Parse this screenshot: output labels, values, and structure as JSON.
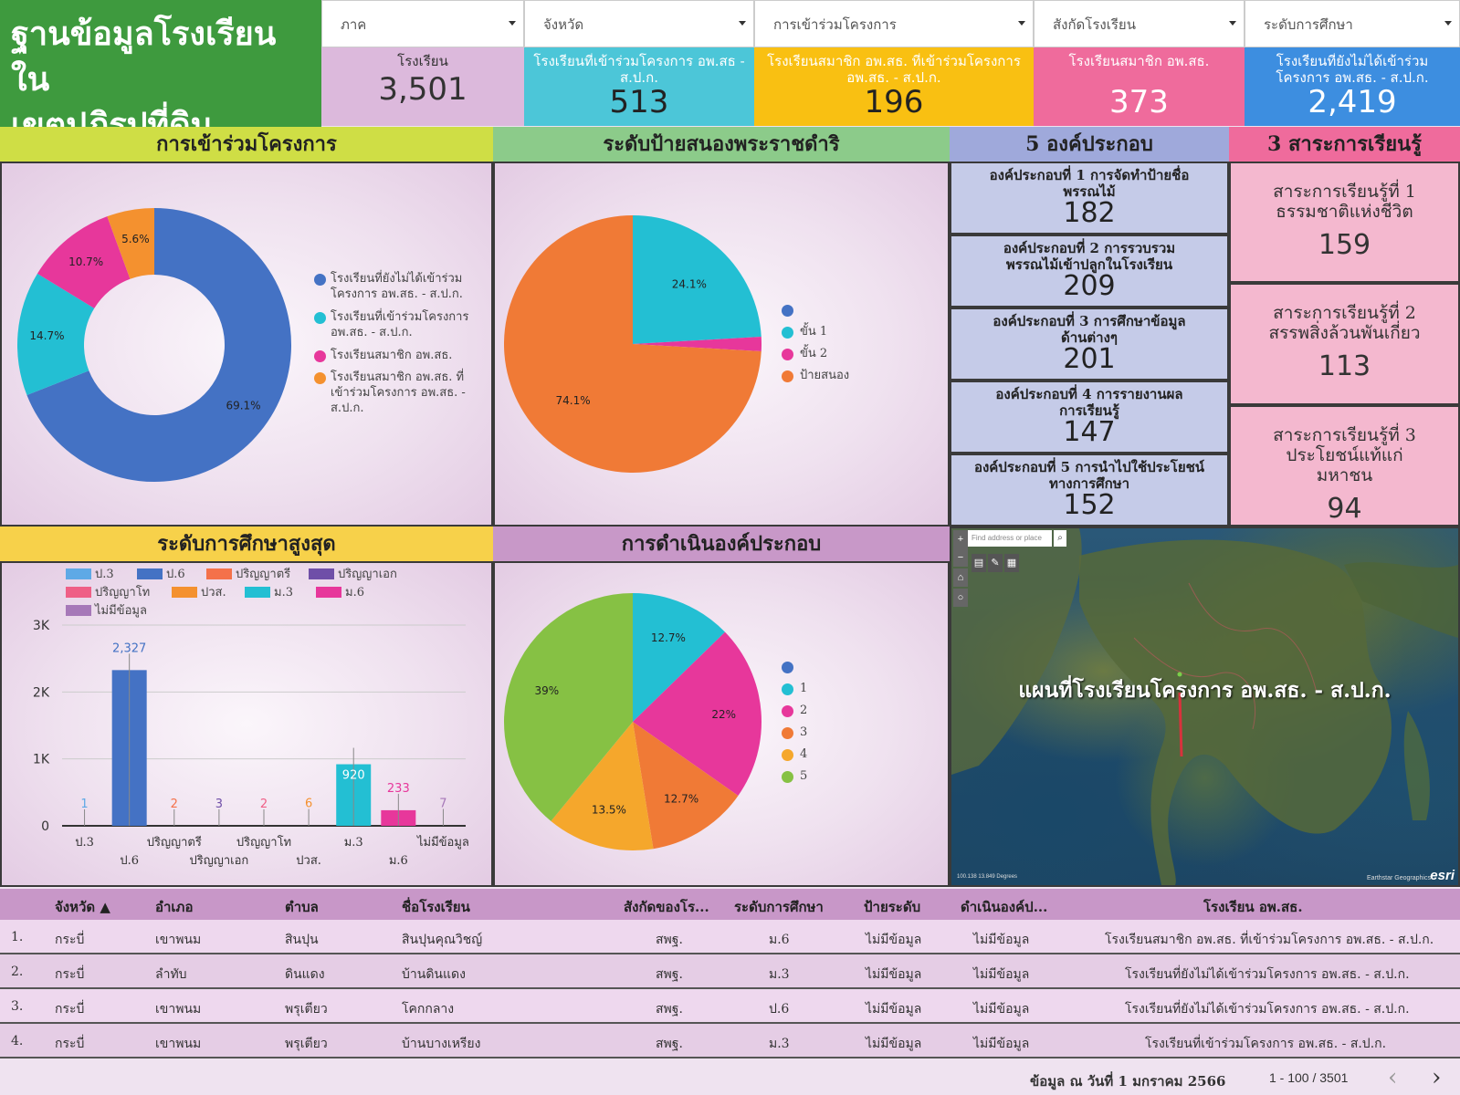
{
  "header": {
    "title_line1": "ฐานข้อมูลโรงเรียนใน",
    "title_line2": "เขตปฏิรูปที่ดิน"
  },
  "filters": [
    {
      "label": "ภาค"
    },
    {
      "label": "จังหวัด"
    },
    {
      "label": "การเข้าร่วมโครงการ"
    },
    {
      "label": "สังกัดโรงเรียน"
    },
    {
      "label": "ระดับการศึกษา"
    }
  ],
  "kpis": [
    {
      "label": "โรงเรียน",
      "value": "3,501",
      "color": "#dcb9dc"
    },
    {
      "label": "โรงเรียนที่เข้าร่วมโครงการ อพ.สธ - ส.ป.ก.",
      "value": "513",
      "color": "#4cc6d8"
    },
    {
      "label": "โรงเรียนสมาชิก อพ.สธ. ที่เข้าร่วมโครงการ อพ.สธ. - ส.ป.ก.",
      "value": "196",
      "color": "#f9c012"
    },
    {
      "label": "โรงเรียนสมาชิก อพ.สธ.",
      "value": "373",
      "color": "#ef6b9c"
    },
    {
      "label": "โรงเรียนที่ยังไม่ได้เข้าร่วมโครงการ อพ.สธ. - ส.ป.ก.",
      "value": "2,419",
      "color": "#3d8ee0"
    }
  ],
  "sections": {
    "participation": {
      "title": "การเข้าร่วมโครงการ",
      "color": "#cfde45"
    },
    "sign_level": {
      "title": "ระดับป้ายสนองพระราชดำริ",
      "color": "#8ccb8a"
    },
    "components": {
      "title": "5 องค์ประกอบ",
      "color": "#9fa9db"
    },
    "strands": {
      "title": "3 สาระการเรียนรู้",
      "color": "#ef6b9c"
    },
    "education": {
      "title": "ระดับการศึกษาสูงสุด",
      "color": "#f7d14a"
    },
    "operation": {
      "title": "การดำเนินองค์ประกอบ",
      "color": "#c898c8"
    }
  },
  "participation_chart": {
    "type": "donut",
    "slices": [
      {
        "label": "โรงเรียนที่ยังไม่ได้เข้าร่วม โครงการ อพ.สธ. - ส.ป.ก.",
        "percent": 69.1,
        "pct_label": "69.1%",
        "color": "#4472c4"
      },
      {
        "label": "โรงเรียนที่เข้าร่วมโครงการ อพ.สธ. - ส.ป.ก.",
        "percent": 14.7,
        "pct_label": "14.7%",
        "color": "#23bfd3"
      },
      {
        "label": "โรงเรียนสมาชิก อพ.สธ.",
        "percent": 10.7,
        "pct_label": "10.7%",
        "color": "#e7379b"
      },
      {
        "label": "โรงเรียนสมาชิก อพ.สธ. ที่ เข้าร่วมโครงการ อพ.สธ. - ส.ป.ก.",
        "percent": 5.6,
        "pct_label": "5.6%",
        "color": "#f4912f"
      }
    ]
  },
  "sign_chart": {
    "type": "pie",
    "slices": [
      {
        "label": "",
        "percent": 0.0,
        "pct_label": "",
        "color": "#4472c4"
      },
      {
        "label": "ขั้น 1",
        "percent": 24.1,
        "pct_label": "24.1%",
        "color": "#23bfd3"
      },
      {
        "label": "ขั้น 2",
        "percent": 1.8,
        "pct_label": "",
        "color": "#e7379b"
      },
      {
        "label": "ป้ายสนอง",
        "percent": 74.1,
        "pct_label": "74.1%",
        "color": "#f07a36"
      }
    ]
  },
  "components": [
    {
      "title": "องค์ประกอบที่ 1 การจัดทำป้ายชื่อพรรณไม้",
      "value": "182"
    },
    {
      "title": "องค์ประกอบที่ 2 การรวบรวม พรรณไม้เข้าปลูกในโรงเรียน",
      "value": "209"
    },
    {
      "title": "องค์ประกอบที่ 3 การศึกษาข้อมูลด้านต่างๆ",
      "value": "201"
    },
    {
      "title": "องค์ประกอบที่ 4 การรายงานผลการเรียนรู้",
      "value": "147"
    },
    {
      "title": "องค์ประกอบที่ 5 การนำไปใช้ประโยชน์ ทางการศึกษา",
      "value": "152"
    }
  ],
  "strands": [
    {
      "title": "สาระการเรียนรู้ที่ 1 ธรรมชาติแห่งชีวิต",
      "value": "159"
    },
    {
      "title": "สาระการเรียนรู้ที่ 2 สรรพสิ่งล้วนพันเกี่ยว",
      "value": "113"
    },
    {
      "title": "สาระการเรียนรู้ที่ 3 ประโยชน์แท้แก่มหาชน",
      "value": "94"
    }
  ],
  "chart_data": [
    {
      "type": "bar",
      "categories": [
        "ป.3",
        "ป.6",
        "ปริญญาตรี",
        "ปริญญาเอก",
        "ปริญญาโท",
        "ปวส.",
        "ม.3",
        "ม.6",
        "ไม่มีข้อมูล"
      ],
      "values": [
        1,
        2327,
        2,
        3,
        2,
        6,
        920,
        233,
        7
      ],
      "value_labels": [
        "1",
        "2,327",
        "2",
        "3",
        "2",
        "6",
        "920",
        "233",
        "7"
      ],
      "colors": [
        "#5ea9e6",
        "#4472c4",
        "#f4714a",
        "#6f4fa8",
        "#ef5f86",
        "#f4912f",
        "#23bfd3",
        "#e7379b",
        "#a678b8"
      ],
      "yticks": [
        "0",
        "1K",
        "2K",
        "3K"
      ],
      "ylim": [
        0,
        3000
      ]
    },
    {
      "type": "pie",
      "categories": [
        "",
        "1",
        "2",
        "3",
        "4",
        "5"
      ],
      "values": [
        0,
        12.7,
        22,
        12.7,
        13.5,
        39
      ],
      "value_labels": [
        "",
        "12.7%",
        "22%",
        "12.7%",
        "13.5%",
        "39%"
      ],
      "colors": [
        "#4472c4",
        "#23bfd3",
        "#e7379b",
        "#f07a36",
        "#f5a72c",
        "#86c144"
      ]
    }
  ],
  "map": {
    "title": "แผนที่โรงเรียนโครงการ อพ.สธ. - ส.ป.ก.",
    "search_placeholder": "Find address or place",
    "scale_text": "100.138 13.849 Degrees",
    "credit": "Earthstar Geographics",
    "logo": "esri"
  },
  "table": {
    "headers": [
      "จังหวัด ▲",
      "อำเภอ",
      "ตำบล",
      "ชื่อโรงเรียน",
      "สังกัดของโร...",
      "ระดับการศึกษา",
      "ป้ายระดับ",
      "ดำเนินองค์ป...",
      "โรงเรียน อพ.สธ."
    ],
    "rows": [
      {
        "n": "1.",
        "province": "กระบี่",
        "district": "เขาพนม",
        "subdistrict": "สินปุน",
        "school": "สินปุนคุณวิชญ์",
        "affiliation": "สพฐ.",
        "level": "ม.6",
        "sign": "ไม่มีข้อมูล",
        "component": "ไม่มีข้อมูล",
        "status": "โรงเรียนสมาชิก อพ.สธ. ที่เข้าร่วมโครงการ อพ.สธ. - ส.ป.ก."
      },
      {
        "n": "2.",
        "province": "กระบี่",
        "district": "ลำทับ",
        "subdistrict": "ดินแดง",
        "school": "บ้านดินแดง",
        "affiliation": "สพฐ.",
        "level": "ม.3",
        "sign": "ไม่มีข้อมูล",
        "component": "ไม่มีข้อมูล",
        "status": "โรงเรียนที่ยังไม่ได้เข้าร่วมโครงการ อพ.สธ. - ส.ป.ก."
      },
      {
        "n": "3.",
        "province": "กระบี่",
        "district": "เขาพนม",
        "subdistrict": "พรุเตียว",
        "school": "โคกกลาง",
        "affiliation": "สพฐ.",
        "level": "ป.6",
        "sign": "ไม่มีข้อมูล",
        "component": "ไม่มีข้อมูล",
        "status": "โรงเรียนที่ยังไม่ได้เข้าร่วมโครงการ อพ.สธ. - ส.ป.ก."
      },
      {
        "n": "4.",
        "province": "กระบี่",
        "district": "เขาพนม",
        "subdistrict": "พรุเตียว",
        "school": "บ้านบางเหรียง",
        "affiliation": "สพฐ.",
        "level": "ม.3",
        "sign": "ไม่มีข้อมูล",
        "component": "ไม่มีข้อมูล",
        "status": "โรงเรียนที่เข้าร่วมโครงการ อพ.สธ. - ส.ป.ก."
      }
    ]
  },
  "footer": {
    "as_of": "ข้อมูล ณ วันที่ 1 มกราคม 2566",
    "pagination": "1 - 100 / 3501",
    "prev": "‹",
    "next": "›"
  }
}
